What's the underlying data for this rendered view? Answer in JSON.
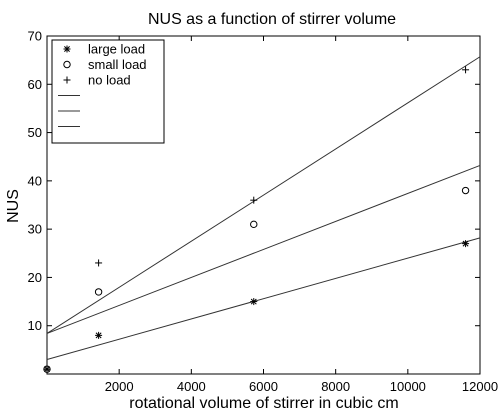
{
  "chart_data": {
    "type": "scatter",
    "title": "NUS as a function of stirrer volume",
    "xlabel": "rotational volume of stirrer in cubic cm",
    "ylabel": "NUS",
    "xlim": [
      0,
      12000
    ],
    "ylim": [
      0,
      70
    ],
    "xticks": [
      2000,
      4000,
      6000,
      8000,
      10000,
      12000
    ],
    "yticks": [
      10,
      20,
      30,
      40,
      50,
      60,
      70
    ],
    "grid": false,
    "legend_position": "top-left",
    "series": [
      {
        "name": "large load",
        "marker": "asterisk",
        "x": [
          0,
          1430,
          5730,
          11600
        ],
        "y": [
          1,
          8,
          15,
          27
        ]
      },
      {
        "name": "small load",
        "marker": "circle",
        "x": [
          0,
          1430,
          5730,
          11600
        ],
        "y": [
          1,
          17,
          31,
          38
        ]
      },
      {
        "name": "no load",
        "marker": "plus",
        "x": [
          0,
          1430,
          5730,
          11600
        ],
        "y": [
          1,
          23,
          36,
          63
        ]
      }
    ],
    "fit_lines": [
      {
        "legend_label": "",
        "x": [
          0,
          12000
        ],
        "y": [
          3.0,
          28.2
        ]
      },
      {
        "legend_label": "",
        "x": [
          0,
          12000
        ],
        "y": [
          8.4,
          43.2
        ]
      },
      {
        "legend_label": "",
        "x": [
          0,
          12000
        ],
        "y": [
          8.4,
          65.7
        ]
      }
    ]
  }
}
